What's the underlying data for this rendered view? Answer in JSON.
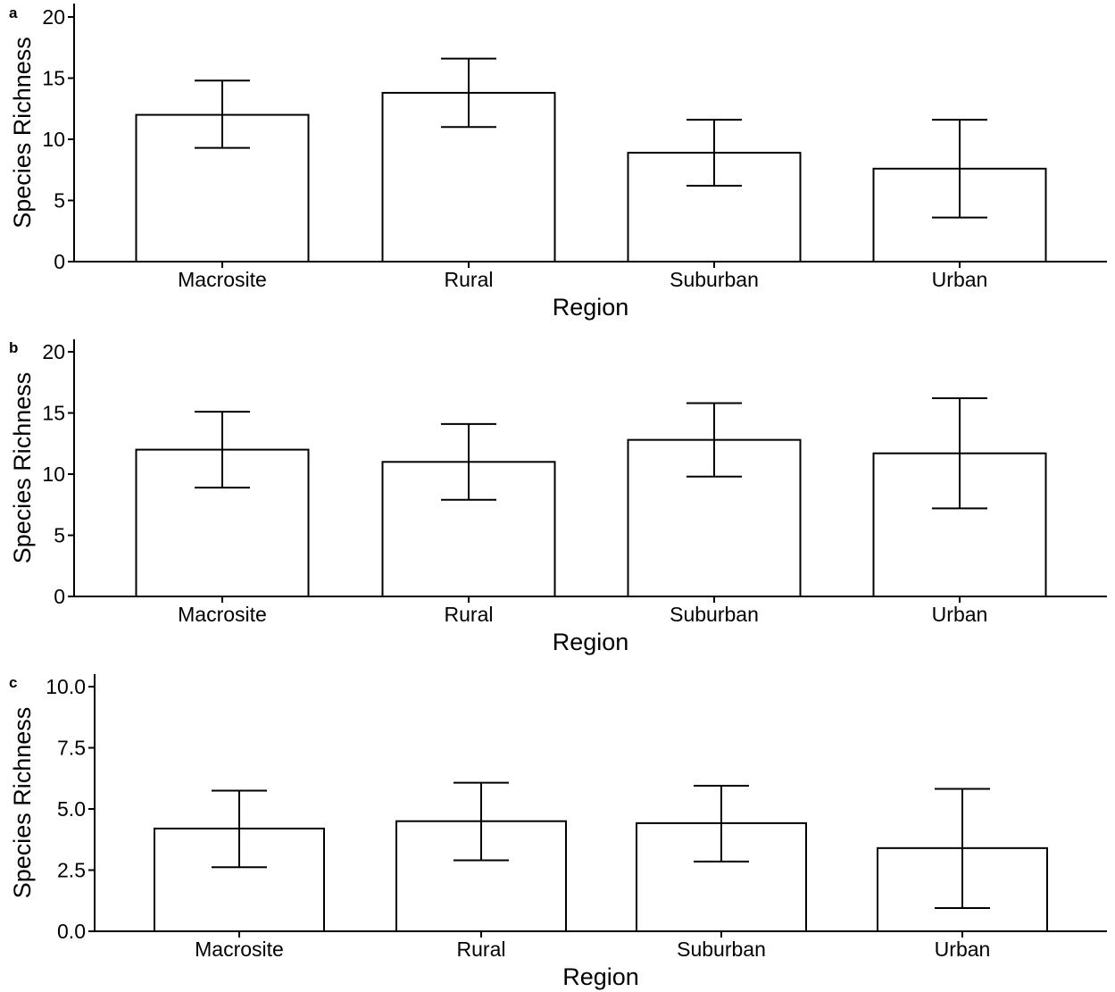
{
  "chart_data": [
    {
      "panel": "a",
      "type": "bar",
      "categories": [
        "Macrosite",
        "Rural",
        "Suburban",
        "Urban"
      ],
      "values": [
        12.0,
        13.8,
        8.9,
        7.6
      ],
      "error_low": [
        9.3,
        11.0,
        6.2,
        3.6
      ],
      "error_high": [
        14.8,
        16.6,
        11.6,
        11.6
      ],
      "ylim": [
        0,
        20
      ],
      "yticks": [
        "0",
        "5",
        "10",
        "15",
        "20"
      ],
      "ytick_values": [
        0,
        5,
        10,
        15,
        20
      ],
      "xlabel": "Region",
      "ylabel": "Species Richness",
      "grid": false
    },
    {
      "panel": "b",
      "type": "bar",
      "categories": [
        "Macrosite",
        "Rural",
        "Suburban",
        "Urban"
      ],
      "values": [
        12.0,
        11.0,
        12.8,
        11.7
      ],
      "error_low": [
        8.9,
        7.9,
        9.8,
        7.2
      ],
      "error_high": [
        15.1,
        14.1,
        15.8,
        16.2
      ],
      "ylim": [
        0,
        20
      ],
      "yticks": [
        "0",
        "5",
        "10",
        "15",
        "20"
      ],
      "ytick_values": [
        0,
        5,
        10,
        15,
        20
      ],
      "xlabel": "Region",
      "ylabel": "Species Richness",
      "grid": false
    },
    {
      "panel": "c",
      "type": "bar",
      "categories": [
        "Macrosite",
        "Rural",
        "Suburban",
        "Urban"
      ],
      "values": [
        4.2,
        4.5,
        4.42,
        3.4
      ],
      "error_low": [
        2.62,
        2.9,
        2.85,
        0.95
      ],
      "error_high": [
        5.75,
        6.07,
        5.95,
        5.82
      ],
      "ylim": [
        0,
        10
      ],
      "yticks": [
        "0.0",
        "2.5",
        "5.0",
        "7.5",
        "10.0"
      ],
      "ytick_values": [
        0,
        2.5,
        5,
        7.5,
        10
      ],
      "xlabel": "Region",
      "ylabel": "Species Richness",
      "grid": false
    }
  ]
}
